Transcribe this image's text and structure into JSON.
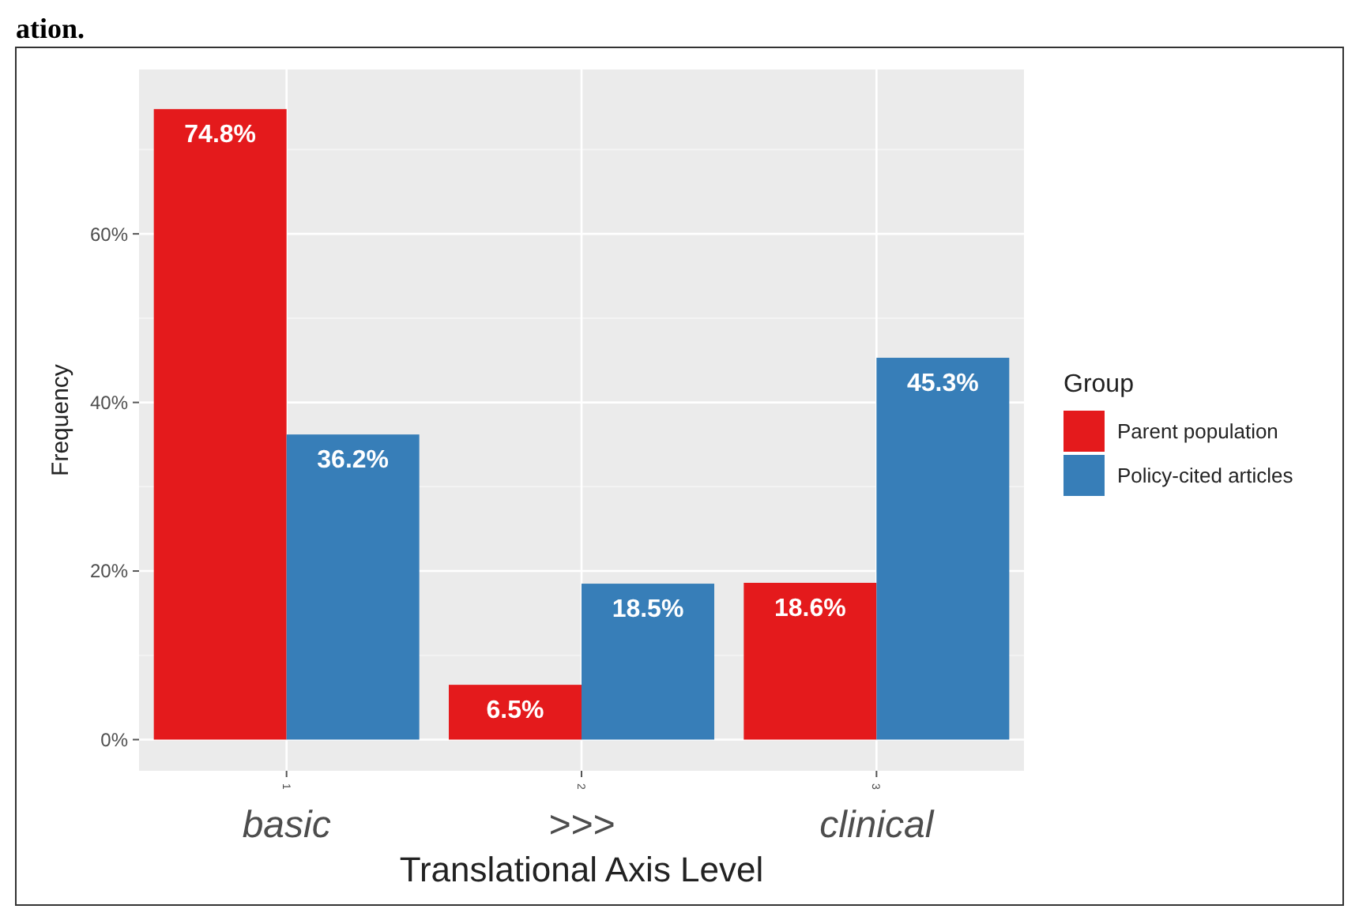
{
  "chart_data": {
    "type": "bar",
    "xlabel": "Translational Axis Level",
    "ylabel": "Frequency",
    "legend_title": "Group",
    "categories": [
      "basic",
      ">>>",
      "clinical"
    ],
    "series": [
      {
        "name": "Parent population",
        "color": "#e41a1c",
        "values": [
          74.8,
          6.5,
          18.6
        ],
        "value_labels": [
          "74.8%",
          "6.5%",
          "18.6%"
        ]
      },
      {
        "name": "Policy-cited articles",
        "color": "#377eb8",
        "values": [
          36.2,
          18.5,
          45.3
        ],
        "value_labels": [
          "36.2%",
          "18.5%",
          "45.3%"
        ]
      }
    ],
    "ylim": [
      -3.7,
      79.5
    ],
    "yticks": [
      {
        "value": 0,
        "label": "0%"
      },
      {
        "value": 20,
        "label": "20%"
      },
      {
        "value": 40,
        "label": "40%"
      },
      {
        "value": 60,
        "label": "60%"
      }
    ],
    "grid": true,
    "legend": "right",
    "annotations": [
      "ation.",
      "1",
      "2",
      "3"
    ]
  }
}
